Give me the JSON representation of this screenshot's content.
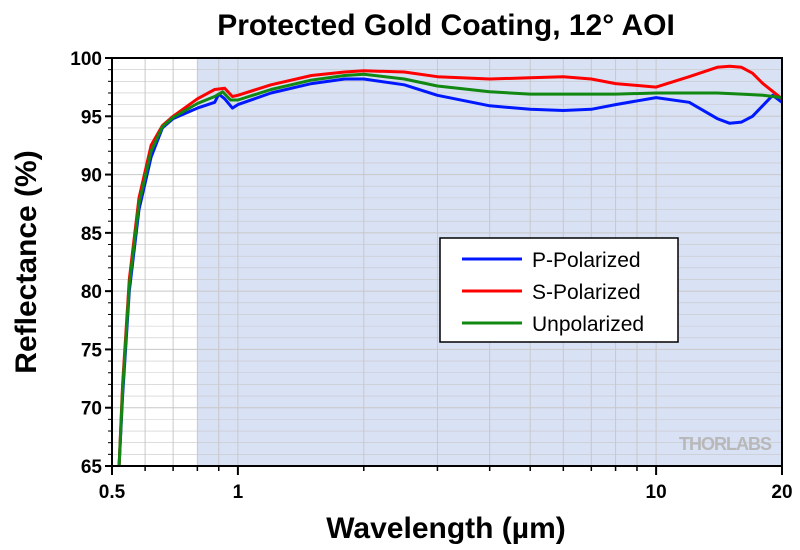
{
  "chart_data": {
    "type": "line",
    "title": "Protected Gold Coating, 12° AOI",
    "xlabel": "Wavelength (µm)",
    "ylabel": "Reflectance (%)",
    "x_scale": "log",
    "xlim": [
      0.5,
      20
    ],
    "ylim": [
      65,
      100
    ],
    "x_ticks": [
      0.5,
      1,
      10,
      20
    ],
    "x_tick_labels": [
      "0.5",
      "1",
      "10",
      "20"
    ],
    "y_ticks": [
      65,
      70,
      75,
      80,
      85,
      90,
      95,
      100
    ],
    "y_tick_labels": [
      "65",
      "70",
      "75",
      "80",
      "85",
      "90",
      "95",
      "100"
    ],
    "grid": true,
    "shaded_region": {
      "from": 0.8,
      "to": 20,
      "color": "#d9e1f5"
    },
    "legend_position": "right-center",
    "watermark": "THORLABS",
    "series": [
      {
        "name": "P-Polarized",
        "color": "#0018ff",
        "points": [
          [
            0.52,
            65
          ],
          [
            0.53,
            71
          ],
          [
            0.55,
            80
          ],
          [
            0.58,
            87
          ],
          [
            0.62,
            91.5
          ],
          [
            0.66,
            94
          ],
          [
            0.7,
            94.8
          ],
          [
            0.8,
            95.7
          ],
          [
            0.88,
            96.2
          ],
          [
            0.9,
            96.9
          ],
          [
            0.93,
            96.5
          ],
          [
            0.97,
            95.7
          ],
          [
            1.0,
            96.0
          ],
          [
            1.2,
            97.0
          ],
          [
            1.5,
            97.8
          ],
          [
            1.8,
            98.2
          ],
          [
            2.0,
            98.2
          ],
          [
            2.5,
            97.7
          ],
          [
            3.0,
            96.8
          ],
          [
            4.0,
            95.9
          ],
          [
            5.0,
            95.6
          ],
          [
            6.0,
            95.5
          ],
          [
            7.0,
            95.6
          ],
          [
            8.0,
            96.0
          ],
          [
            10.0,
            96.6
          ],
          [
            12.0,
            96.2
          ],
          [
            14.0,
            94.8
          ],
          [
            15.0,
            94.4
          ],
          [
            16.0,
            94.5
          ],
          [
            17.0,
            95.0
          ],
          [
            19.0,
            96.8
          ],
          [
            20.0,
            96.2
          ]
        ]
      },
      {
        "name": "S-Polarized",
        "color": "#ff0000",
        "points": [
          [
            0.52,
            65
          ],
          [
            0.53,
            72
          ],
          [
            0.55,
            81
          ],
          [
            0.58,
            88
          ],
          [
            0.62,
            92.5
          ],
          [
            0.66,
            94.2
          ],
          [
            0.7,
            95.0
          ],
          [
            0.8,
            96.5
          ],
          [
            0.88,
            97.3
          ],
          [
            0.93,
            97.4
          ],
          [
            0.97,
            96.7
          ],
          [
            1.0,
            96.8
          ],
          [
            1.2,
            97.7
          ],
          [
            1.5,
            98.5
          ],
          [
            1.8,
            98.8
          ],
          [
            2.0,
            98.9
          ],
          [
            2.5,
            98.8
          ],
          [
            3.0,
            98.4
          ],
          [
            4.0,
            98.2
          ],
          [
            5.0,
            98.3
          ],
          [
            6.0,
            98.4
          ],
          [
            7.0,
            98.2
          ],
          [
            8.0,
            97.8
          ],
          [
            10.0,
            97.5
          ],
          [
            12.0,
            98.4
          ],
          [
            14.0,
            99.2
          ],
          [
            15.0,
            99.3
          ],
          [
            16.0,
            99.2
          ],
          [
            17.0,
            98.7
          ],
          [
            18.0,
            97.8
          ],
          [
            20.0,
            96.5
          ]
        ]
      },
      {
        "name": "Unpolarized",
        "color": "#118811",
        "points": [
          [
            0.52,
            65
          ],
          [
            0.53,
            71.5
          ],
          [
            0.55,
            80.5
          ],
          [
            0.58,
            87.5
          ],
          [
            0.62,
            92
          ],
          [
            0.66,
            94.1
          ],
          [
            0.7,
            94.9
          ],
          [
            0.8,
            96.1
          ],
          [
            0.88,
            96.7
          ],
          [
            0.92,
            97.1
          ],
          [
            0.96,
            96.4
          ],
          [
            1.0,
            96.4
          ],
          [
            1.2,
            97.3
          ],
          [
            1.5,
            98.1
          ],
          [
            1.8,
            98.5
          ],
          [
            2.0,
            98.6
          ],
          [
            2.5,
            98.2
          ],
          [
            3.0,
            97.6
          ],
          [
            4.0,
            97.1
          ],
          [
            5.0,
            96.9
          ],
          [
            6.0,
            96.9
          ],
          [
            7.0,
            96.9
          ],
          [
            8.0,
            96.9
          ],
          [
            10.0,
            97.0
          ],
          [
            12.0,
            97.0
          ],
          [
            14.0,
            97.0
          ],
          [
            16.0,
            96.9
          ],
          [
            18.0,
            96.8
          ],
          [
            20.0,
            96.6
          ]
        ]
      }
    ]
  }
}
